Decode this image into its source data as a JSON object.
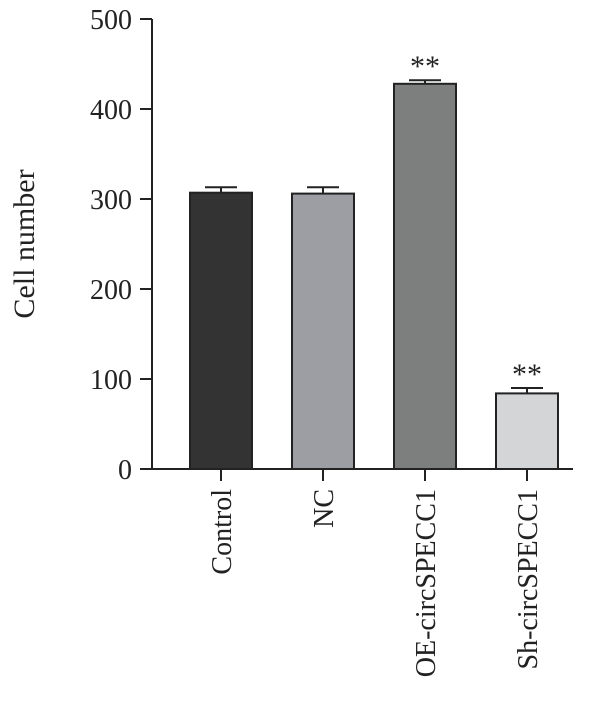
{
  "chart_data": {
    "type": "bar",
    "title": "",
    "xlabel": "",
    "ylabel": "Cell number",
    "ylim": [
      0,
      500
    ],
    "yticks": [
      0,
      100,
      200,
      300,
      400,
      500
    ],
    "categories": [
      "Control",
      "NC",
      "OE-circSPECC1",
      "Sh-circSPECC1"
    ],
    "values": [
      307,
      306,
      428,
      84
    ],
    "errors": [
      6,
      7,
      4,
      6
    ],
    "significance": [
      "",
      "",
      "**",
      "**"
    ],
    "colors": [
      "#333333",
      "#9d9ea3",
      "#7d7f7e",
      "#d4d5d7"
    ],
    "grid": false,
    "legend": "none"
  }
}
